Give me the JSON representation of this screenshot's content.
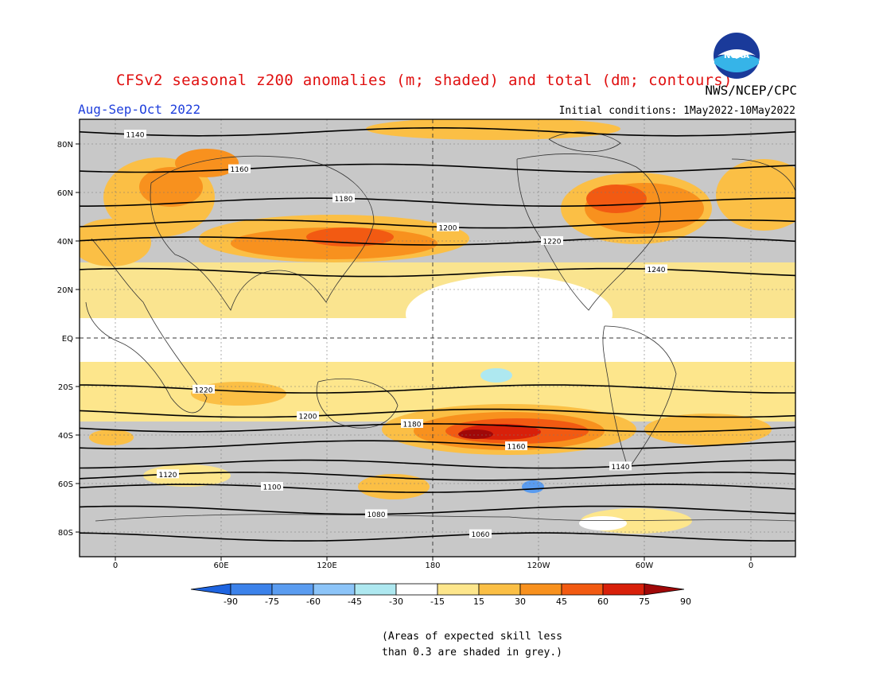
{
  "title": "CFSv2 seasonal z200 anomalies (m; shaded) and total (dm; contours)",
  "period": "Aug-Sep-Oct 2022",
  "agency": "NWS/NCEP/CPC",
  "logo_text": "NOAA",
  "initial_conditions": "Initial conditions: 1May2022-10May2022",
  "note": {
    "line1": "(Areas of expected skill less",
    "line2": "than 0.3 are shaded in grey.)"
  },
  "lat_labels": [
    "80N",
    "60N",
    "40N",
    "20N",
    "EQ",
    "20S",
    "40S",
    "60S",
    "80S"
  ],
  "lon_labels": [
    "0",
    "60E",
    "120E",
    "180",
    "120W",
    "60W",
    "0"
  ],
  "colorbar": {
    "labels": [
      "-90",
      "-75",
      "-60",
      "-45",
      "-30",
      "-15",
      "15",
      "30",
      "45",
      "60",
      "75",
      "90"
    ],
    "colors": [
      "#1e64e0",
      "#3c82ea",
      "#5a9cf0",
      "#8cc4f8",
      "#aee8f0",
      "#ffffff",
      "#fde68c",
      "#fbbf45",
      "#f8911e",
      "#f25a12",
      "#d8200a",
      "#a00808"
    ]
  },
  "contours": [
    {
      "label": "1140",
      "lat": 85
    },
    {
      "label": "1160",
      "lat": 70
    },
    {
      "label": "1180",
      "lat": 56
    },
    {
      "label": "1200",
      "lat": 47
    },
    {
      "label": "1220",
      "lat": 40
    },
    {
      "label": "1240",
      "lat": 27
    },
    {
      "label": "1220",
      "lat": -21
    },
    {
      "label": "1200",
      "lat": -31
    },
    {
      "label": "1180",
      "lat": -37
    },
    {
      "label": "1160",
      "lat": -44
    },
    {
      "label": "1140",
      "lat": -52
    },
    {
      "label": "1120",
      "lat": -57
    },
    {
      "label": "1100",
      "lat": -62
    },
    {
      "label": "1080",
      "lat": -71
    },
    {
      "label": "1060",
      "lat": -82
    }
  ],
  "colors": {
    "title": "#e01010",
    "period": "#1f3fdc",
    "grey_mask": "#c8c8c8"
  }
}
